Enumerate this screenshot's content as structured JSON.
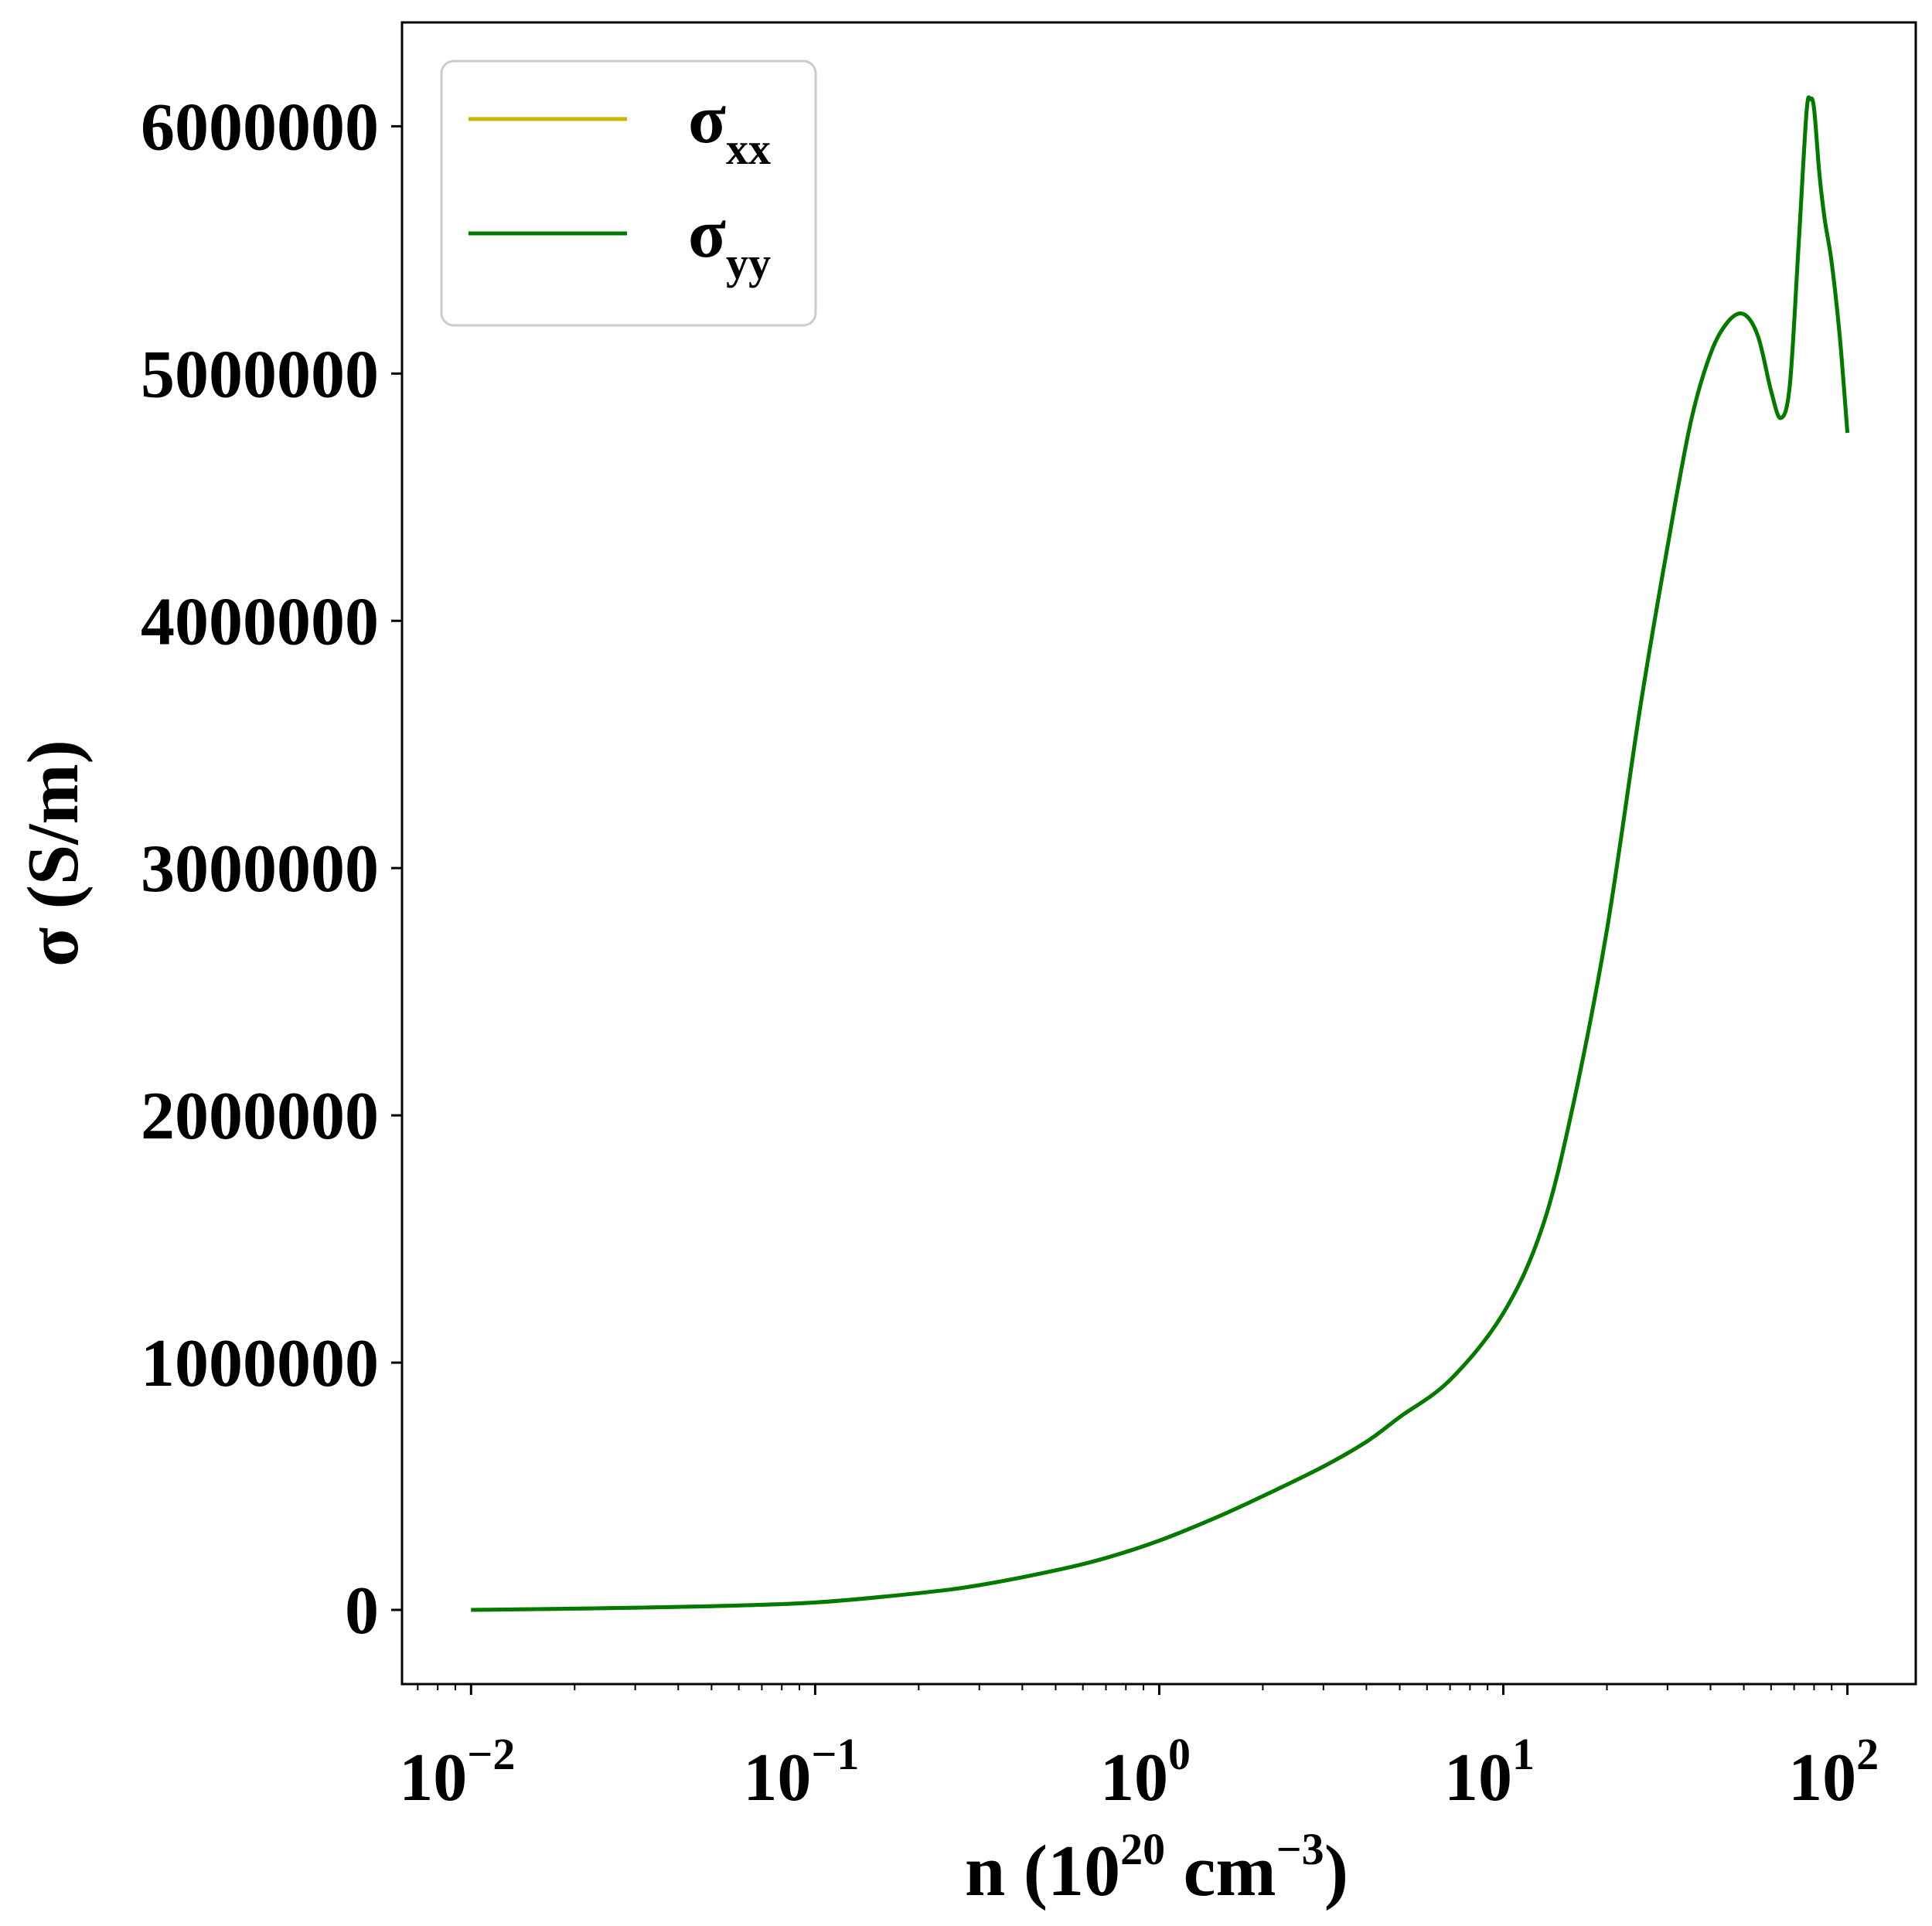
{
  "chart_data": {
    "type": "line",
    "xscale": "log",
    "xlim": [
      0.0063,
      158
    ],
    "ylim": [
      -300000,
      6420000
    ],
    "x_ticks": [
      {
        "base": "10",
        "exp": "−2"
      },
      {
        "base": "10",
        "exp": "−1"
      },
      {
        "base": "10",
        "exp": "0"
      },
      {
        "base": "10",
        "exp": "1"
      },
      {
        "base": "10",
        "exp": "2"
      }
    ],
    "y_ticks": [
      "0",
      "1000000",
      "2000000",
      "3000000",
      "4000000",
      "5000000",
      "6000000"
    ],
    "xlabel": {
      "main": "n (10",
      "exp1": "20",
      "mid": " cm",
      "exp2": "−3",
      "end": ")"
    },
    "ylabel": "σ (S/m)",
    "grid": false,
    "legend_position": "top-left",
    "series": [
      {
        "name": "σxx",
        "symbol": "σ",
        "subscript": "xx",
        "color": "#c7b700",
        "x": [
          0.01,
          0.02,
          0.05,
          0.1,
          0.2,
          0.3,
          0.5,
          0.7,
          1,
          1.5,
          2,
          3,
          4,
          5,
          7,
          10,
          13,
          16,
          20,
          25,
          30,
          35,
          40,
          45,
          50,
          55,
          60,
          64,
          68,
          72,
          76,
          78,
          80,
          83,
          86,
          90,
          95,
          100
        ],
        "y": [
          0,
          5000,
          15000,
          30000,
          68000,
          100000,
          160000,
          210000,
          280000,
          380000,
          460000,
          580000,
          680000,
          780000,
          930000,
          1200000,
          1550000,
          2050000,
          2750000,
          3650000,
          4300000,
          4800000,
          5080000,
          5210000,
          5240000,
          5150000,
          4930000,
          4820000,
          4950000,
          5500000,
          6050000,
          6110000,
          6070000,
          5800000,
          5620000,
          5450000,
          5150000,
          4760000
        ]
      },
      {
        "name": "σyy",
        "symbol": "σ",
        "subscript": "yy",
        "color": "#007a00",
        "x": [
          0.01,
          0.02,
          0.05,
          0.1,
          0.2,
          0.3,
          0.5,
          0.7,
          1,
          1.5,
          2,
          3,
          4,
          5,
          7,
          10,
          13,
          16,
          20,
          25,
          30,
          35,
          40,
          45,
          50,
          55,
          60,
          64,
          68,
          72,
          76,
          78,
          80,
          83,
          86,
          90,
          95,
          100
        ],
        "y": [
          0,
          5000,
          15000,
          30000,
          68000,
          100000,
          160000,
          210000,
          280000,
          380000,
          460000,
          580000,
          680000,
          780000,
          930000,
          1200000,
          1550000,
          2050000,
          2750000,
          3650000,
          4300000,
          4800000,
          5080000,
          5210000,
          5240000,
          5150000,
          4930000,
          4820000,
          4950000,
          5500000,
          6050000,
          6110000,
          6070000,
          5800000,
          5620000,
          5450000,
          5150000,
          4760000
        ]
      }
    ]
  }
}
